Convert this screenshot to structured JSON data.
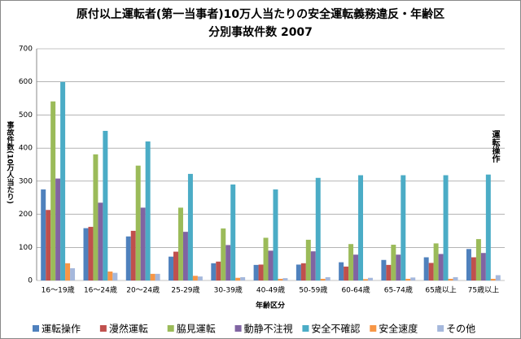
{
  "chart_data": {
    "type": "bar",
    "title": "原付以上運転者(第一当事者)10万人当たりの安全運転義務違反・年齢区",
    "subtitle": "分別事故件数 2007",
    "y_label": "事故件数(10万人当たり)",
    "x_label": "年齢区分",
    "annotation": "運転操作",
    "categories": [
      "16〜19歳",
      "16〜24歳",
      "20〜24歳",
      "25-29歳",
      "30-39歳",
      "40-49歳",
      "50-59歳",
      "60-64歳",
      "65-74歳",
      "65歳以上",
      "75歳以上"
    ],
    "series": [
      {
        "name": "運転操作",
        "color": "#4f81bd",
        "values": [
          275,
          158,
          133,
          72,
          52,
          47,
          48,
          55,
          62,
          70,
          95
        ]
      },
      {
        "name": "漫然運転",
        "color": "#c0504d",
        "values": [
          213,
          162,
          150,
          87,
          57,
          48,
          52,
          42,
          47,
          53,
          70
        ]
      },
      {
        "name": "脇見運転",
        "color": "#9bbb59",
        "values": [
          541,
          381,
          347,
          220,
          157,
          129,
          123,
          110,
          108,
          112,
          125
        ]
      },
      {
        "name": "動静不注視",
        "color": "#8064a2",
        "values": [
          308,
          235,
          220,
          147,
          107,
          90,
          88,
          78,
          78,
          80,
          83
        ]
      },
      {
        "name": "安全不確認",
        "color": "#4bacc6",
        "values": [
          600,
          452,
          420,
          322,
          290,
          275,
          310,
          318,
          318,
          318,
          320
        ]
      },
      {
        "name": "安全速度",
        "color": "#f79646",
        "values": [
          52,
          27,
          20,
          14,
          8,
          5,
          5,
          4,
          5,
          5,
          5
        ]
      },
      {
        "name": "その他",
        "color": "#a5b8dc",
        "values": [
          37,
          23,
          20,
          12,
          10,
          7,
          10,
          8,
          9,
          10,
          16
        ]
      }
    ],
    "ylim": [
      0,
      700
    ],
    "yticks": [
      0,
      100,
      200,
      300,
      400,
      500,
      600,
      700
    ],
    "grid": true
  }
}
